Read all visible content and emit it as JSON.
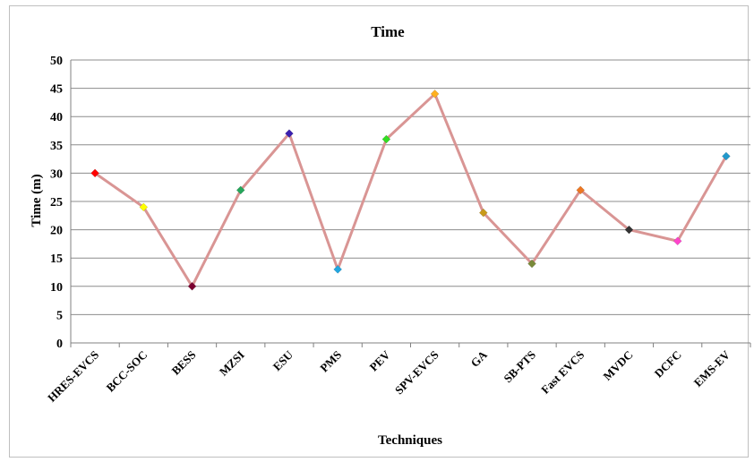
{
  "chart_data": {
    "type": "line",
    "title": "Time",
    "xlabel": "Techniques",
    "ylabel": "Time (m)",
    "ylim": [
      0,
      50
    ],
    "yticks": [
      0,
      5,
      10,
      15,
      20,
      25,
      30,
      35,
      40,
      45,
      50
    ],
    "grid": true,
    "legend": "none",
    "line_color": "#d99594",
    "categories": [
      "HRES-EVCS",
      "BCC-SOC",
      "BESS",
      "MZSI",
      "ESU",
      "PMS",
      "PEV",
      "SPV-EVCS",
      "GA",
      "SB-PTS",
      "Fast EVCS",
      "MVDC",
      "DCFC",
      "EMS-EV"
    ],
    "values": [
      30,
      24,
      10,
      27,
      37,
      13,
      36,
      44,
      23,
      14,
      27,
      20,
      18,
      33
    ],
    "marker_colors": [
      "#ff0000",
      "#ffff00",
      "#7b0030",
      "#26a65b",
      "#3a1fb0",
      "#21a6e0",
      "#33dd22",
      "#ffb020",
      "#c99a1a",
      "#7a8a3a",
      "#ee7722",
      "#333333",
      "#ff44cc",
      "#2299cc"
    ]
  }
}
